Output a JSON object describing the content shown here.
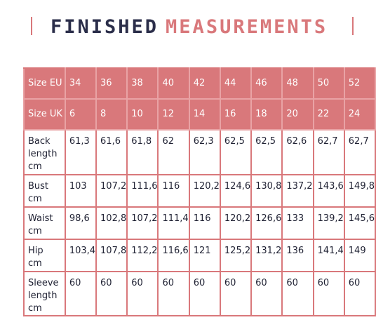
{
  "title": {
    "word1": "FINISHED",
    "word2": "MEASUREMENTS"
  },
  "table": {
    "header_rows": [
      {
        "label": "Size EU",
        "values": [
          "34",
          "36",
          "38",
          "40",
          "42",
          "44",
          "46",
          "48",
          "50",
          "52"
        ]
      },
      {
        "label": "Size UK",
        "values": [
          "6",
          "8",
          "10",
          "12",
          "14",
          "16",
          "18",
          "20",
          "22",
          "24"
        ]
      }
    ],
    "rows": [
      {
        "label": [
          "Back",
          "length",
          "cm"
        ],
        "values": [
          "61,3",
          "61,6",
          "61,8",
          "62",
          "62,3",
          "62,5",
          "62,5",
          "62,6",
          "62,7",
          "62,7"
        ]
      },
      {
        "label": [
          "Bust",
          "cm"
        ],
        "values": [
          "103",
          "107,2",
          "111,6",
          "116",
          "120,2",
          "124,6",
          "130,8",
          "137,2",
          "143,6",
          "149,8"
        ]
      },
      {
        "label": [
          "Waist",
          "cm"
        ],
        "values": [
          "98,6",
          "102,8",
          "107,2",
          "111,4",
          "116",
          "120,2",
          "126,6",
          "133",
          "139,2",
          "145,6"
        ]
      },
      {
        "label": [
          "Hip",
          "cm"
        ],
        "values": [
          "103,4",
          "107,8",
          "112,2",
          "116,6",
          "121",
          "125,2",
          "131,2",
          "136",
          "141,4",
          "149"
        ]
      },
      {
        "label": [
          "Sleeve",
          "length",
          "cm"
        ],
        "values": [
          "60",
          "60",
          "60",
          "60",
          "60",
          "60",
          "60",
          "60",
          "60",
          "60"
        ]
      }
    ]
  },
  "colors": {
    "accent": "#d9787b",
    "title_dark": "#2b2e4a",
    "text": "#1f2133"
  }
}
